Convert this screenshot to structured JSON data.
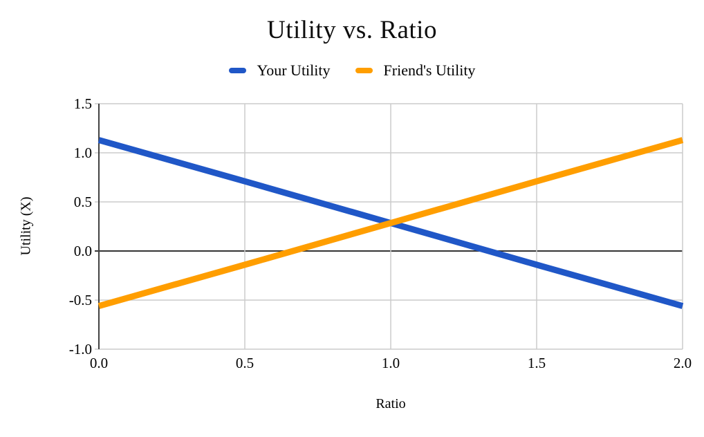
{
  "title": "Utility vs. Ratio",
  "legend": [
    {
      "label": "Your Utility",
      "color": "#2057C7"
    },
    {
      "label": "Friend's Utility",
      "color": "#FF9E00"
    }
  ],
  "chart_data": {
    "type": "line",
    "title": "Utility vs. Ratio",
    "xlabel": "Ratio",
    "ylabel": "Utility (X)",
    "x": [
      0.0,
      0.5,
      1.0,
      1.5,
      2.0
    ],
    "series": [
      {
        "name": "Your Utility",
        "color": "#2057C7",
        "values": [
          1.13,
          0.71,
          0.285,
          -0.14,
          -0.56
        ]
      },
      {
        "name": "Friend's Utility",
        "color": "#FF9E00",
        "values": [
          -0.56,
          -0.14,
          0.285,
          0.71,
          1.13
        ]
      }
    ],
    "xlim": [
      0.0,
      2.0
    ],
    "ylim": [
      -1.0,
      1.5
    ],
    "x_ticks": [
      "0.0",
      "0.5",
      "1.0",
      "1.5",
      "2.0"
    ],
    "y_ticks": [
      "1.5",
      "1.0",
      "0.5",
      "0.0",
      "-0.5",
      "-1.0"
    ],
    "grid": true,
    "zero_line": true,
    "legend_position": "top"
  },
  "colors": {
    "background": "#ffffff",
    "grid": "#cccccc",
    "axis": "#424242",
    "zero_line": "#333333",
    "text": "#000000"
  }
}
